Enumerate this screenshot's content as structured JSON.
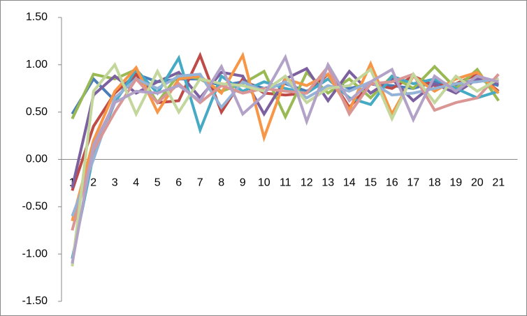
{
  "chart_data": {
    "type": "line",
    "categories": [
      "1",
      "2",
      "3",
      "4",
      "5",
      "6",
      "7",
      "8",
      "9",
      "10",
      "11",
      "12",
      "13",
      "14",
      "15",
      "16",
      "17",
      "18",
      "19",
      "20",
      "21"
    ],
    "ylim": [
      -1.5,
      1.5
    ],
    "yticks": [
      {
        "value": -1.5,
        "label": "-1.50"
      },
      {
        "value": -1,
        "label": "-1.00"
      },
      {
        "value": -0.5,
        "label": "-0.50"
      },
      {
        "value": 0,
        "label": "0.00"
      },
      {
        "value": 0.5,
        "label": "0.50"
      },
      {
        "value": 1,
        "label": "1.00"
      },
      {
        "value": 1.5,
        "label": "1.50"
      }
    ],
    "grid": false,
    "series": [
      {
        "color": "#4a7ebb",
        "values": [
          0.48,
          0.85,
          0.62,
          0.9,
          0.82,
          0.85,
          0.85,
          0.78,
          0.82,
          0.75,
          0.8,
          0.72,
          0.85,
          0.75,
          0.8,
          0.78,
          0.75,
          0.82,
          0.78,
          0.85,
          0.78
        ]
      },
      {
        "color": "#be4b48",
        "values": [
          -0.33,
          0.35,
          0.7,
          0.9,
          0.6,
          0.62,
          1.1,
          0.5,
          0.85,
          0.7,
          0.68,
          0.7,
          0.9,
          0.55,
          0.8,
          0.75,
          0.88,
          0.78,
          0.8,
          0.9,
          0.72
        ]
      },
      {
        "color": "#98b954",
        "values": [
          0.43,
          0.9,
          0.85,
          0.95,
          0.6,
          0.9,
          0.85,
          0.72,
          0.8,
          0.93,
          0.45,
          0.92,
          0.7,
          0.85,
          0.65,
          0.88,
          0.75,
          0.98,
          0.75,
          0.95,
          0.62
        ]
      },
      {
        "color": "#7d60a0",
        "values": [
          -0.3,
          0.68,
          0.88,
          0.7,
          0.82,
          0.92,
          0.65,
          0.92,
          0.88,
          0.48,
          0.85,
          0.96,
          0.62,
          0.93,
          0.7,
          0.85,
          0.62,
          0.8,
          0.7,
          0.85,
          0.8
        ]
      },
      {
        "color": "#46aac5",
        "values": [
          -1.05,
          0.05,
          0.6,
          0.95,
          0.7,
          1.07,
          0.31,
          0.88,
          0.72,
          0.82,
          0.75,
          0.7,
          0.85,
          0.65,
          0.58,
          0.88,
          0.8,
          0.85,
          0.75,
          0.65,
          0.72
        ]
      },
      {
        "color": "#f79646",
        "values": [
          -0.65,
          0.2,
          0.72,
          0.97,
          0.5,
          0.85,
          0.88,
          0.7,
          1.1,
          0.23,
          0.85,
          0.78,
          0.9,
          0.52,
          1.01,
          0.48,
          0.88,
          0.72,
          0.85,
          0.92,
          0.7
        ]
      },
      {
        "color": "#95b3d7",
        "values": [
          -0.6,
          0.0,
          0.65,
          0.85,
          0.75,
          0.88,
          0.9,
          0.55,
          0.82,
          0.72,
          0.82,
          0.65,
          0.78,
          0.72,
          0.82,
          0.68,
          0.7,
          0.75,
          0.8,
          0.82,
          0.85
        ]
      },
      {
        "color": "#d99694",
        "values": [
          -0.75,
          0.1,
          0.5,
          0.85,
          0.6,
          0.8,
          0.6,
          0.78,
          0.7,
          0.75,
          0.72,
          0.7,
          0.98,
          0.48,
          0.8,
          0.82,
          0.9,
          0.52,
          0.6,
          0.65,
          0.9
        ]
      },
      {
        "color": "#c3d69b",
        "values": [
          -1.13,
          0.72,
          1.0,
          0.48,
          0.93,
          0.5,
          0.85,
          0.8,
          0.78,
          0.72,
          0.88,
          0.6,
          0.75,
          0.78,
          0.95,
          0.43,
          0.9,
          0.6,
          0.88,
          0.72,
          0.85
        ]
      },
      {
        "color": "#b3a2c7",
        "values": [
          -1.1,
          0.15,
          0.6,
          0.72,
          0.7,
          0.78,
          0.62,
          0.98,
          0.48,
          0.68,
          1.08,
          0.4,
          1.0,
          0.62,
          0.82,
          0.95,
          0.42,
          0.88,
          0.72,
          0.88,
          0.82
        ]
      }
    ]
  }
}
